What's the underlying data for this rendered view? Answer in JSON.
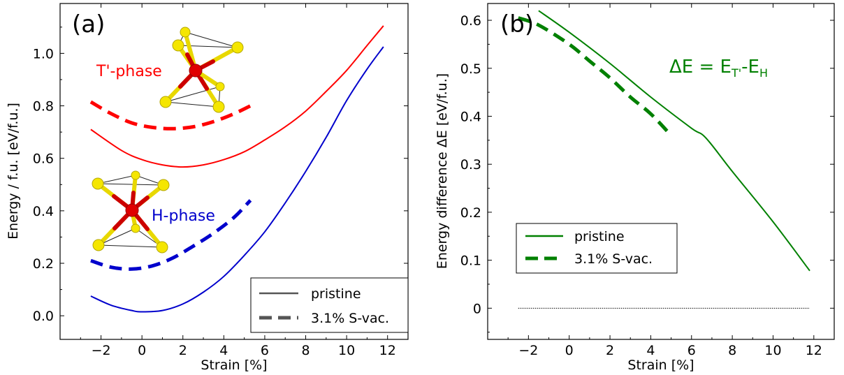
{
  "colors": {
    "t_phase": "#ff0000",
    "h_phase": "#0000cc",
    "delta": "#008000",
    "legend_line": "#555555",
    "sulfur": "#ffee00",
    "metal": "#e00000"
  },
  "chart_data": [
    {
      "type": "line",
      "panel_label": "(a)",
      "xlabel": "Strain [%]",
      "ylabel": "Energy / f.u. [eV/f.u.]",
      "xlim": [
        -4,
        13
      ],
      "ylim": [
        -0.09,
        1.19
      ],
      "xticks": [
        -2,
        0,
        2,
        4,
        6,
        8,
        10,
        12
      ],
      "xtick_labels": [
        "−2",
        "0",
        "2",
        "4",
        "6",
        "8",
        "10",
        "12"
      ],
      "yticks": [
        0.0,
        0.2,
        0.4,
        0.6,
        0.8,
        1.0
      ],
      "ytick_labels": [
        "0.0",
        "0.2",
        "0.4",
        "0.6",
        "0.8",
        "1.0"
      ],
      "annotations": {
        "t_phase_label": "T'-phase",
        "h_phase_label": "H-phase"
      },
      "legend": {
        "placement": "lower-right",
        "entries": [
          "pristine",
          "3.1% S-vac."
        ]
      },
      "series": [
        {
          "name": "pristine",
          "group": "T'-phase",
          "style": "solid",
          "x": [
            -2.5,
            -1,
            0,
            1,
            2,
            3,
            4,
            5,
            6,
            7,
            8,
            9,
            10,
            11,
            11.8
          ],
          "y": [
            0.71,
            0.63,
            0.595,
            0.575,
            0.567,
            0.575,
            0.595,
            0.625,
            0.67,
            0.72,
            0.78,
            0.855,
            0.935,
            1.03,
            1.105
          ]
        },
        {
          "name": "3.1% S-vac.",
          "group": "T'-phase",
          "style": "dashed",
          "x": [
            -2.5,
            -1.5,
            -0.5,
            0.5,
            1.5,
            2.5,
            3.5,
            4.5,
            5.3
          ],
          "y": [
            0.815,
            0.77,
            0.735,
            0.718,
            0.713,
            0.72,
            0.74,
            0.77,
            0.8
          ]
        },
        {
          "name": "pristine",
          "group": "H-phase",
          "style": "solid",
          "x": [
            -2.5,
            -1.5,
            -0.5,
            0,
            1,
            2,
            3,
            4,
            5,
            6,
            7,
            8,
            9,
            10,
            11,
            11.8
          ],
          "y": [
            0.075,
            0.04,
            0.02,
            0.015,
            0.02,
            0.045,
            0.09,
            0.15,
            0.23,
            0.32,
            0.43,
            0.55,
            0.68,
            0.82,
            0.94,
            1.025
          ]
        },
        {
          "name": "3.1% S-vac.",
          "group": "H-phase",
          "style": "dashed",
          "x": [
            -2.5,
            -1.5,
            -0.5,
            0.5,
            1.5,
            2.5,
            3.5,
            4.5,
            5.3
          ],
          "y": [
            0.21,
            0.185,
            0.178,
            0.19,
            0.22,
            0.265,
            0.315,
            0.375,
            0.44
          ]
        }
      ]
    },
    {
      "type": "line",
      "panel_label": "(b)",
      "xlabel": "Strain [%]",
      "ylabel": "Energy difference ΔE [eV/f.u.]",
      "xlim": [
        -4,
        13
      ],
      "ylim": [
        -0.065,
        0.635
      ],
      "xticks": [
        -2,
        0,
        2,
        4,
        6,
        8,
        10,
        12
      ],
      "xtick_labels": [
        "−2",
        "0",
        "2",
        "4",
        "6",
        "8",
        "10",
        "12"
      ],
      "yticks": [
        0,
        0.1,
        0.2,
        0.3,
        0.4,
        0.5,
        0.6
      ],
      "ytick_labels": [
        "0",
        "0.1",
        "0.2",
        "0.3",
        "0.4",
        "0.5",
        "0.6"
      ],
      "annotation": {
        "main": "ΔE = E",
        "sub1": "T'",
        "sep": "-E",
        "sub2": "H"
      },
      "legend": {
        "placement": "center-left",
        "entries": [
          "pristine",
          "3.1% S-vac."
        ]
      },
      "reference_line": {
        "y": 0,
        "x_range": [
          -2.5,
          11.8
        ],
        "style": "dotted"
      },
      "series": [
        {
          "name": "pristine",
          "style": "solid",
          "x": [
            -1.5,
            0,
            2,
            4,
            6,
            6.7,
            8,
            10,
            11.8
          ],
          "y": [
            0.62,
            0.575,
            0.51,
            0.44,
            0.375,
            0.355,
            0.285,
            0.18,
            0.078
          ]
        },
        {
          "name": "3.1% S-vac.",
          "style": "dashed",
          "x": [
            -2.5,
            -1.5,
            0,
            1,
            2,
            3,
            4,
            5
          ],
          "y": [
            0.605,
            0.59,
            0.55,
            0.515,
            0.48,
            0.44,
            0.405,
            0.36
          ]
        }
      ]
    }
  ]
}
